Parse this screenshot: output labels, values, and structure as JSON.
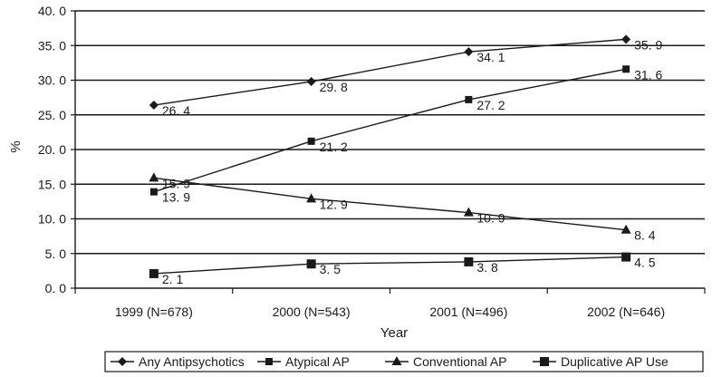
{
  "chart_data": {
    "type": "line",
    "title": "",
    "xlabel": "Year",
    "ylabel": "%",
    "ylim": [
      0,
      40
    ],
    "y_ticks": [
      "0. 0",
      "5. 0",
      "10. 0",
      "15. 0",
      "20. 0",
      "25. 0",
      "30. 0",
      "35. 0",
      "40. 0"
    ],
    "categories": [
      "1999 (N=678)",
      "2000 (N=543)",
      "2001 (N=496)",
      "2002 (N=646)"
    ],
    "grid": "horizontal",
    "legend_position": "bottom",
    "series": [
      {
        "name": "Any Antipsychotics",
        "marker": "diamond",
        "values": [
          26.4,
          29.8,
          34.1,
          35.9
        ],
        "labels": [
          "26. 4",
          "29. 8",
          "34. 1",
          "35. 9"
        ]
      },
      {
        "name": "Atypical AP",
        "marker": "square",
        "values": [
          13.9,
          21.2,
          27.2,
          31.6
        ],
        "labels": [
          "13. 9",
          "21. 2",
          "27. 2",
          "31. 6"
        ]
      },
      {
        "name": "Conventional AP",
        "marker": "triangle",
        "values": [
          15.9,
          12.9,
          10.9,
          8.4
        ],
        "labels": [
          "15. 9",
          "12. 9",
          "10. 9",
          "8. 4"
        ]
      },
      {
        "name": "Duplicative AP Use",
        "marker": "square-large",
        "values": [
          2.1,
          3.5,
          3.8,
          4.5
        ],
        "labels": [
          "2. 1",
          "3. 5",
          "3. 8",
          "4. 5"
        ]
      }
    ],
    "line_color": "#1a1a1a"
  }
}
